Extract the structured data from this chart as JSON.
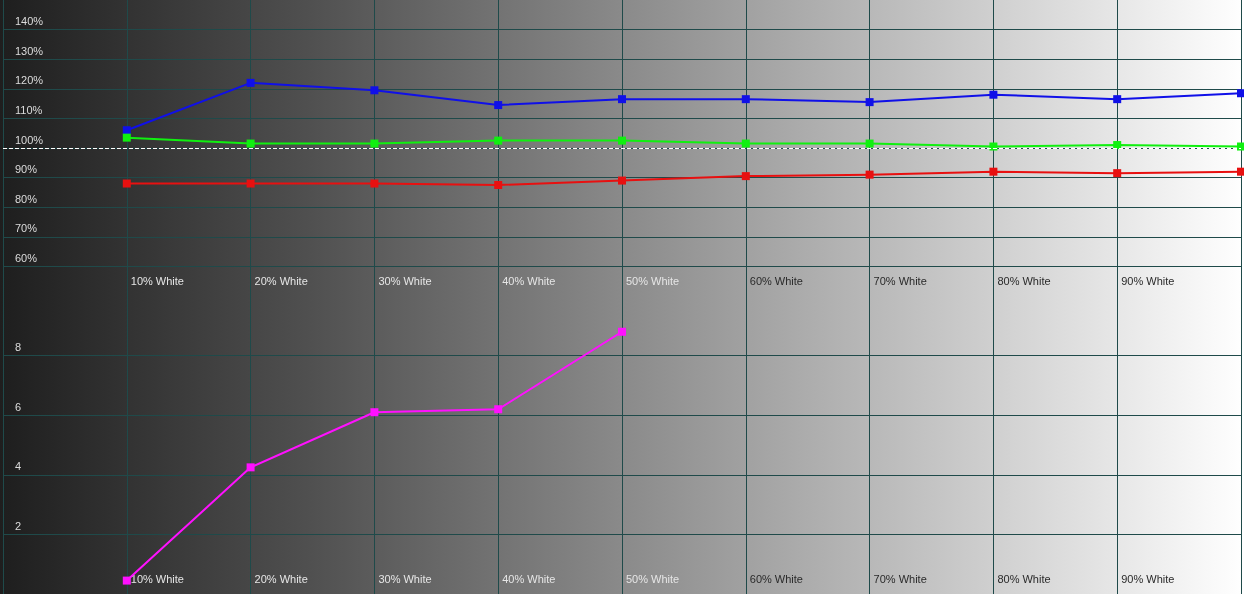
{
  "chart_data": [
    {
      "type": "line",
      "categories": [
        null,
        "10% White",
        "20% White",
        "30% White",
        "40% White",
        "50% White",
        "60% White",
        "70% White",
        "80% White",
        "90% White",
        null
      ],
      "series": [
        {
          "color": "#1010e8",
          "values": [
            null,
            106,
            122,
            119.5,
            114.5,
            116.5,
            116.5,
            115.5,
            118,
            116.5,
            118.5
          ]
        },
        {
          "color": "#10f010",
          "values": [
            null,
            103.5,
            101.5,
            101.5,
            102.5,
            102.5,
            101.5,
            101.5,
            100.5,
            101,
            100.5
          ]
        },
        {
          "color": "#e81010",
          "values": [
            null,
            88,
            88,
            88,
            87.5,
            89,
            90.5,
            91,
            92,
            91.5,
            92
          ]
        }
      ],
      "ylim": [
        50,
        150
      ],
      "yticks": [
        {
          "value": 60,
          "label": "60%"
        },
        {
          "value": 70,
          "label": "70%"
        },
        {
          "value": 80,
          "label": "80%"
        },
        {
          "value": 90,
          "label": "90%"
        },
        {
          "value": 100,
          "label": "100%"
        },
        {
          "value": 110,
          "label": "110%"
        },
        {
          "value": 120,
          "label": "120%"
        },
        {
          "value": 130,
          "label": "130%"
        },
        {
          "value": 140,
          "label": "140%"
        }
      ],
      "ref_lines": [
        {
          "axis": "y",
          "value": 100,
          "color": "#ffffff",
          "line_style": "dashed"
        }
      ],
      "grid": true,
      "marker": "square",
      "line_style": "solid"
    },
    {
      "type": "line",
      "categories": [
        null,
        "10% White",
        "20% White",
        "30% White",
        "40% White",
        "50% White",
        "60% White",
        "70% White",
        "80% White",
        "90% White",
        null
      ],
      "series": [
        {
          "color": "#ff10ff",
          "values": [
            null,
            0.45,
            4.25,
            6.1,
            6.2,
            8.8,
            null,
            null,
            null,
            null,
            null
          ]
        }
      ],
      "ylim": [
        0,
        10
      ],
      "yticks": [
        2,
        4,
        6,
        8
      ],
      "grid": true,
      "marker": "square",
      "line_style": "solid"
    }
  ]
}
